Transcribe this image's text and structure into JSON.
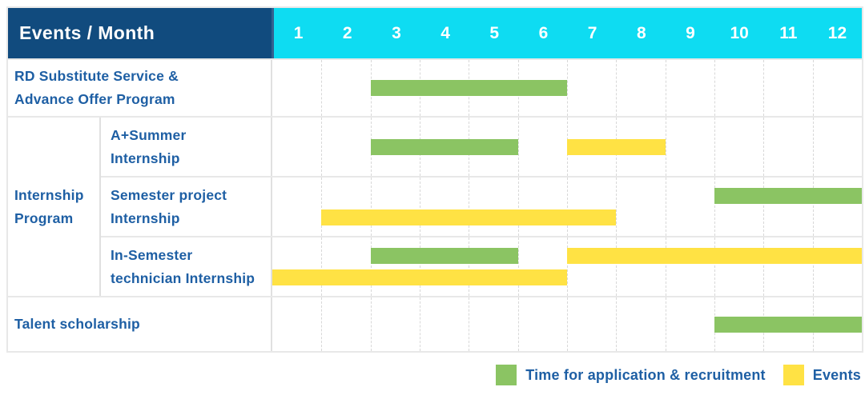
{
  "header": {
    "events_month_label": "Events / Month",
    "months": [
      "1",
      "2",
      "3",
      "4",
      "5",
      "6",
      "7",
      "8",
      "9",
      "10",
      "11",
      "12"
    ]
  },
  "groups": [
    {
      "name": "Internship Program",
      "lines": [
        "Internship",
        "Program"
      ]
    }
  ],
  "legend": [
    {
      "key": "application",
      "label": "Time for application & recruitment",
      "color": "#8BC463"
    },
    {
      "key": "events",
      "label": "Events",
      "color": "#FFE244"
    }
  ],
  "colors": {
    "header_bg": "#114B7E",
    "header_divider": "#33608F",
    "months_bg": "#0EDCF2",
    "header_text": "#FFFFFF",
    "label_text": "#1E5FA4",
    "row_border": "#E8E8E8",
    "grid_dash": "#D8D8D8"
  },
  "chart_data": {
    "type": "bar",
    "subtype": "gantt",
    "title": "Events / Month",
    "x_axis": {
      "unit": "month",
      "categories": [
        1,
        2,
        3,
        4,
        5,
        6,
        7,
        8,
        9,
        10,
        11,
        12
      ]
    },
    "legend_position": "bottom-right",
    "grid": "dashed-vertical-month-lines",
    "series": [
      {
        "name": "Time for application & recruitment",
        "color": "#8BC463"
      },
      {
        "name": "Events",
        "color": "#FFE244"
      }
    ],
    "rows": [
      {
        "group": "",
        "label": "RD Substitute Service & Advance Offer Program",
        "label_lines": [
          "RD Substitute Service &",
          "Advance Offer Program"
        ],
        "lanes": 1,
        "bars": [
          {
            "series": "Time for application & recruitment",
            "start_month": 3,
            "end_month": 6,
            "lane": 0
          }
        ]
      },
      {
        "group": "Internship Program",
        "label": "A+Summer Internship",
        "label_lines": [
          "A+Summer",
          "Internship"
        ],
        "lanes": 1,
        "bars": [
          {
            "series": "Time for application & recruitment",
            "start_month": 3,
            "end_month": 5,
            "lane": 0
          },
          {
            "series": "Events",
            "start_month": 7,
            "end_month": 8,
            "lane": 0
          }
        ]
      },
      {
        "group": "Internship Program",
        "label": "Semester project Internship",
        "label_lines": [
          "Semester project",
          "Internship"
        ],
        "lanes": 2,
        "bars": [
          {
            "series": "Time for application & recruitment",
            "start_month": 10,
            "end_month": 12,
            "lane": 0
          },
          {
            "series": "Events",
            "start_month": 2,
            "end_month": 7,
            "lane": 1
          }
        ]
      },
      {
        "group": "Internship Program",
        "label": "In-Semester technician Internship",
        "label_lines": [
          "In-Semester",
          "technician Internship"
        ],
        "lanes": 2,
        "bars": [
          {
            "series": "Time for application & recruitment",
            "start_month": 3,
            "end_month": 5,
            "lane": 0
          },
          {
            "series": "Events",
            "start_month": 7,
            "end_month": 12,
            "lane": 0
          },
          {
            "series": "Events",
            "start_month": 1,
            "end_month": 6,
            "lane": 1
          }
        ]
      },
      {
        "group": "",
        "label": "Talent scholarship",
        "label_lines": [
          "Talent scholarship"
        ],
        "lanes": 1,
        "bars": [
          {
            "series": "Time for application & recruitment",
            "start_month": 10,
            "end_month": 12,
            "lane": 0
          }
        ]
      }
    ]
  }
}
